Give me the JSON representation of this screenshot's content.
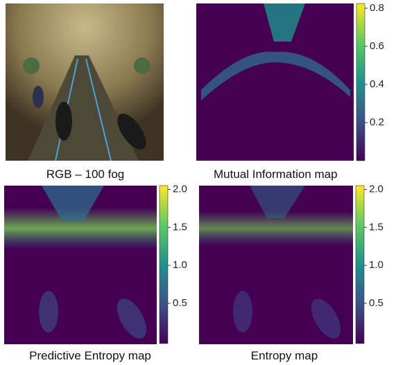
{
  "panels": [
    {
      "caption": "RGB – 100 fog"
    },
    {
      "caption": "Mutual Information map",
      "colorbar": {
        "lim": [
          0,
          0.825
        ],
        "ticks": [
          0.2,
          0.4,
          0.6,
          0.8
        ]
      }
    },
    {
      "caption": "Predictive Entropy map",
      "colorbar": {
        "lim": [
          -0.03,
          2.05
        ],
        "ticks": [
          {
            "value": 0.5,
            "label": "0.5"
          },
          {
            "value": 1,
            "label": "1.0"
          },
          {
            "value": 1.5,
            "label": "1.5"
          },
          {
            "value": 2,
            "label": "2.0"
          }
        ]
      }
    },
    {
      "caption": "Entropy map",
      "colorbar": {
        "lim": [
          -0.03,
          2.05
        ],
        "ticks": [
          {
            "value": 0.5,
            "label": "0.5"
          },
          {
            "value": 1,
            "label": "1.0"
          },
          {
            "value": 1.5,
            "label": "1.5"
          },
          {
            "value": 2,
            "label": "2.0"
          }
        ]
      }
    }
  ]
}
